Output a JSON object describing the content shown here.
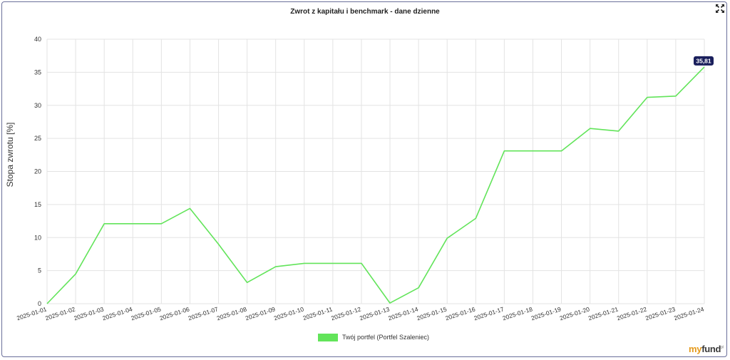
{
  "chart_data": {
    "type": "line",
    "title": "Zwrot z kapitału i benchmark - dane dzienne",
    "ylabel": "Stopa zwrotu [%]",
    "xlabel": "",
    "ylim": [
      0,
      40
    ],
    "yticks": [
      "0",
      "5",
      "10",
      "15",
      "20",
      "25",
      "30",
      "35",
      "40"
    ],
    "grid": true,
    "legend_position": "bottom-center",
    "x": [
      "2025-01-01",
      "2025-01-02",
      "2025-01-03",
      "2025-01-04",
      "2025-01-05",
      "2025-01-06",
      "2025-01-07",
      "2025-01-08",
      "2025-01-09",
      "2025-01-10",
      "2025-01-11",
      "2025-01-12",
      "2025-01-13",
      "2025-01-14",
      "2025-01-15",
      "2025-01-16",
      "2025-01-17",
      "2025-01-18",
      "2025-01-19",
      "2025-01-20",
      "2025-01-21",
      "2025-01-22",
      "2025-01-23",
      "2025-01-24"
    ],
    "series": [
      {
        "name": "Twój portfel (Portfel Szaleniec)",
        "color": "#62e45a",
        "values": [
          0,
          4.5,
          12.1,
          12.1,
          12.1,
          14.4,
          9.0,
          3.2,
          5.6,
          6.1,
          6.1,
          6.1,
          0.1,
          2.4,
          9.9,
          12.9,
          23.1,
          23.1,
          23.1,
          26.5,
          26.1,
          31.2,
          31.4,
          35.81
        ]
      }
    ],
    "tooltip": {
      "label": "35,81",
      "index": 23,
      "color": "#1a1f5c"
    }
  },
  "brand": {
    "part1": "my",
    "part2": "fund",
    "suffix": "pl"
  },
  "icons": {
    "expand": "expand-icon"
  }
}
